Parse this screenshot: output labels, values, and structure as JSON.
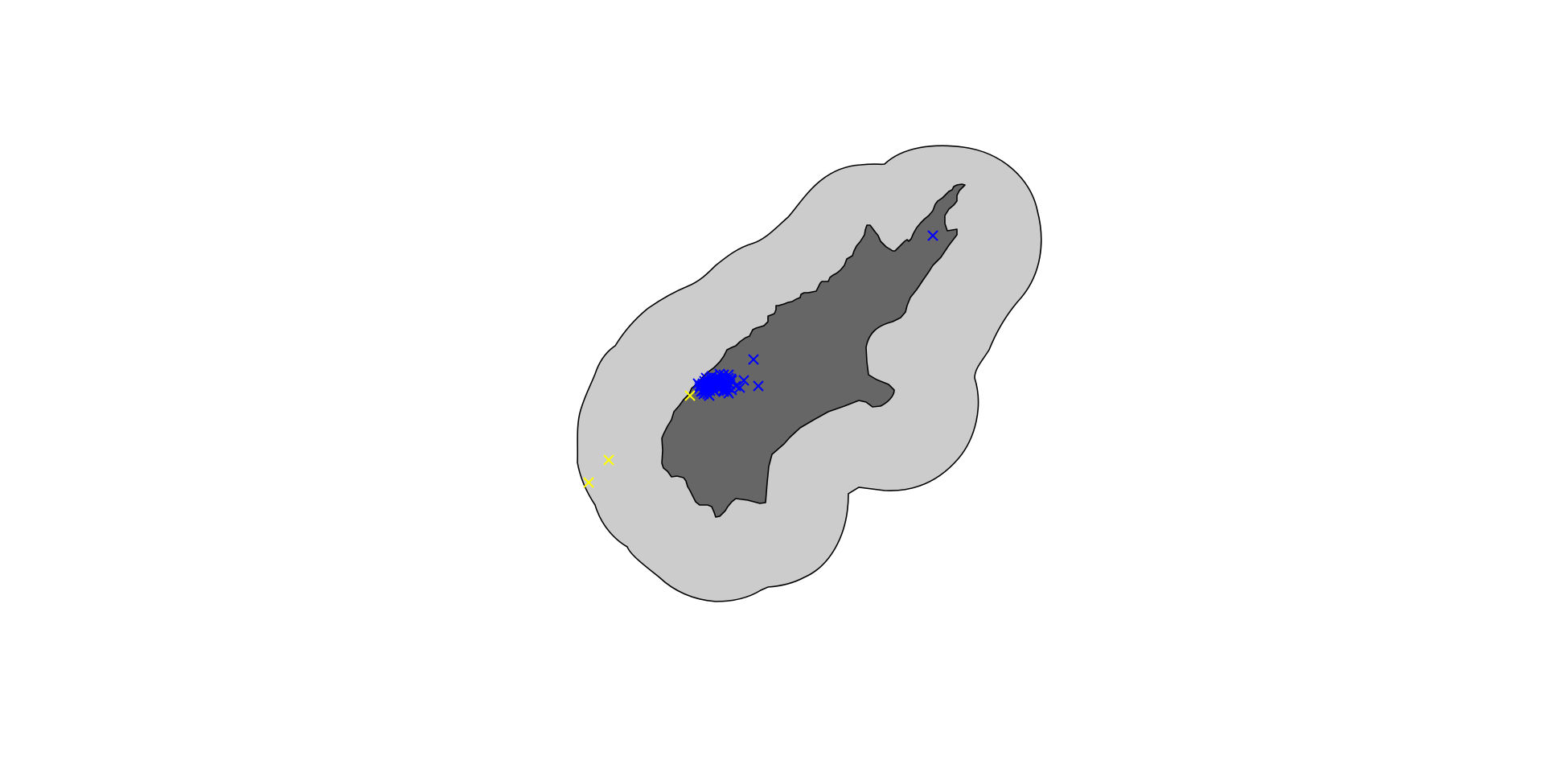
{
  "map": {
    "colors": {
      "background": "#ffffff",
      "buffer_fill": "#cccccc",
      "island_fill": "#666666",
      "outline": "#000000"
    },
    "marker_groups": [
      {
        "name": "blue-markers",
        "color": "#0000ff",
        "symbol": "cross"
      },
      {
        "name": "yellow-markers",
        "color": "#ffff00",
        "symbol": "cross"
      }
    ]
  }
}
